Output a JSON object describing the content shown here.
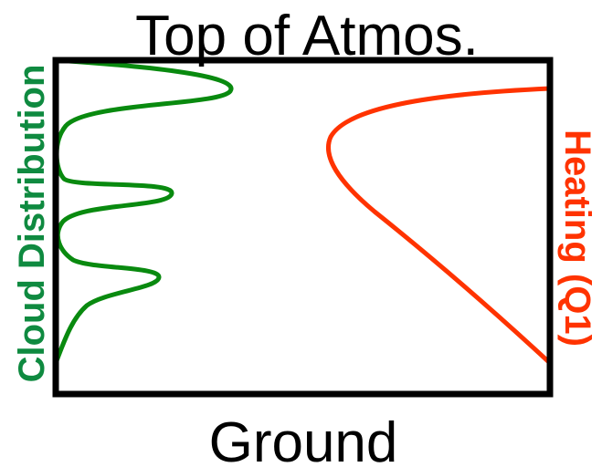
{
  "top_label": "Top of Atmos.",
  "bottom_label": "Ground",
  "left_label": "Cloud Distribution",
  "right_label": "Heating (Q1)",
  "colors": {
    "frame": "#000000",
    "cloud_curve": "#098a0f",
    "heating_curve": "#ff3300",
    "left_label": "#0f8a40",
    "right_label": "#ff3300",
    "text": "#000000"
  }
}
